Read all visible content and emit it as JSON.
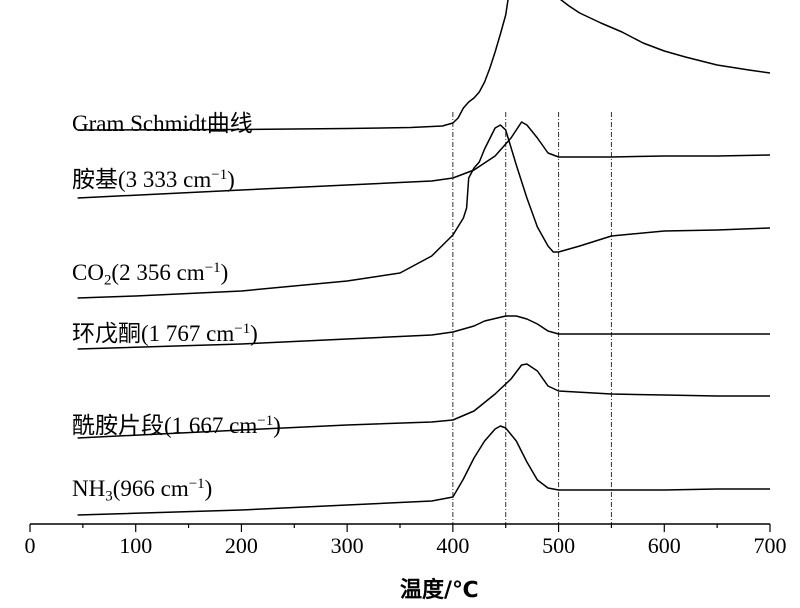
{
  "chart_data": {
    "type": "line",
    "xlabel": "温度/℃",
    "ylabel": "",
    "xlim": [
      0,
      700
    ],
    "x_ticks": [
      0,
      100,
      200,
      300,
      400,
      500,
      600,
      700
    ],
    "x_tick_labels": [
      "0",
      "100",
      "200",
      "300",
      "400",
      "500",
      "600",
      "700"
    ],
    "y_axis": "none; curves are vertically offset relative intensities",
    "reference_lines": [
      400,
      450,
      500,
      550
    ],
    "series": [
      {
        "name": "Gram Schmidt曲线",
        "label_parts": [
          [
            "Gram Schmidt曲线",
            ""
          ]
        ],
        "points": [
          [
            45,
            0.0
          ],
          [
            200,
            0.5
          ],
          [
            300,
            1.5
          ],
          [
            360,
            2.5
          ],
          [
            390,
            4
          ],
          [
            400,
            7
          ],
          [
            405,
            12
          ],
          [
            410,
            22
          ],
          [
            415,
            28
          ],
          [
            420,
            32
          ],
          [
            425,
            38
          ],
          [
            430,
            48
          ],
          [
            435,
            62
          ],
          [
            440,
            78
          ],
          [
            445,
            96
          ],
          [
            450,
            115
          ],
          [
            455,
            150
          ],
          [
            460,
            185
          ],
          [
            465,
            203
          ],
          [
            470,
            200
          ],
          [
            475,
            188
          ],
          [
            480,
            172
          ],
          [
            485,
            157
          ],
          [
            490,
            145
          ],
          [
            495,
            137
          ],
          [
            500,
            132
          ],
          [
            510,
            124
          ],
          [
            520,
            117
          ],
          [
            540,
            107
          ],
          [
            560,
            98
          ],
          [
            580,
            87
          ],
          [
            600,
            79
          ],
          [
            620,
            73
          ],
          [
            650,
            65
          ],
          [
            680,
            60
          ],
          [
            700,
            57
          ]
        ]
      },
      {
        "name": "胺基(3 333 cm⁻¹)",
        "label_parts": [
          [
            "胺基(3 333 cm",
            ""
          ],
          [
            "−1",
            "sup"
          ],
          [
            ")",
            ""
          ]
        ],
        "points": [
          [
            45,
            0
          ],
          [
            200,
            8
          ],
          [
            300,
            13
          ],
          [
            380,
            17
          ],
          [
            400,
            20
          ],
          [
            420,
            28
          ],
          [
            440,
            42
          ],
          [
            455,
            60
          ],
          [
            465,
            76
          ],
          [
            470,
            73
          ],
          [
            480,
            60
          ],
          [
            490,
            45
          ],
          [
            500,
            41
          ],
          [
            550,
            41
          ],
          [
            600,
            42
          ],
          [
            650,
            42
          ],
          [
            700,
            43
          ]
        ]
      },
      {
        "name": "CO₂(2 356 cm⁻¹)",
        "label_parts": [
          [
            "CO",
            ""
          ],
          [
            "2",
            "sub"
          ],
          [
            "(2 356 cm",
            ""
          ],
          [
            "−1",
            "sup"
          ],
          [
            ")",
            ""
          ]
        ],
        "points": [
          [
            45,
            0
          ],
          [
            100,
            2
          ],
          [
            200,
            7
          ],
          [
            300,
            17
          ],
          [
            350,
            25
          ],
          [
            380,
            42
          ],
          [
            400,
            63
          ],
          [
            410,
            80
          ],
          [
            413,
            90
          ],
          [
            415,
            120
          ],
          [
            420,
            130
          ],
          [
            425,
            136
          ],
          [
            430,
            149
          ],
          [
            440,
            170
          ],
          [
            445,
            173
          ],
          [
            450,
            168
          ],
          [
            460,
            133
          ],
          [
            470,
            100
          ],
          [
            480,
            71
          ],
          [
            490,
            52
          ],
          [
            495,
            46
          ],
          [
            500,
            46
          ],
          [
            520,
            52
          ],
          [
            550,
            62
          ],
          [
            600,
            67
          ],
          [
            650,
            68
          ],
          [
            700,
            70
          ]
        ]
      },
      {
        "name": "环戊酮(1 767 cm⁻¹)",
        "label_parts": [
          [
            "环戊酮(1 767 cm",
            ""
          ],
          [
            "−1",
            "sup"
          ],
          [
            ")",
            ""
          ]
        ],
        "points": [
          [
            45,
            0
          ],
          [
            200,
            5
          ],
          [
            300,
            10
          ],
          [
            380,
            14
          ],
          [
            400,
            17
          ],
          [
            420,
            23
          ],
          [
            430,
            28
          ],
          [
            450,
            33
          ],
          [
            460,
            33
          ],
          [
            470,
            30
          ],
          [
            480,
            25
          ],
          [
            490,
            18
          ],
          [
            500,
            15
          ],
          [
            550,
            15
          ],
          [
            600,
            15
          ],
          [
            650,
            15
          ],
          [
            700,
            15
          ]
        ]
      },
      {
        "name": "酰胺片段(1 667 cm⁻¹)",
        "label_parts": [
          [
            "酰胺片段(1 667 cm",
            ""
          ],
          [
            "−1",
            "sup"
          ],
          [
            ")",
            ""
          ]
        ],
        "points": [
          [
            45,
            0
          ],
          [
            200,
            8
          ],
          [
            300,
            13
          ],
          [
            380,
            16
          ],
          [
            400,
            18
          ],
          [
            420,
            27
          ],
          [
            440,
            44
          ],
          [
            455,
            59
          ],
          [
            465,
            73
          ],
          [
            470,
            74
          ],
          [
            480,
            67
          ],
          [
            490,
            52
          ],
          [
            500,
            47
          ],
          [
            550,
            44
          ],
          [
            600,
            43
          ],
          [
            650,
            42
          ],
          [
            700,
            42
          ]
        ]
      },
      {
        "name": "NH₃(966 cm⁻¹)",
        "label_parts": [
          [
            "NH",
            ""
          ],
          [
            "3",
            "sub"
          ],
          [
            "(966 cm",
            ""
          ],
          [
            "−1",
            "sup"
          ],
          [
            ")",
            ""
          ]
        ],
        "points": [
          [
            45,
            0
          ],
          [
            200,
            5
          ],
          [
            300,
            10
          ],
          [
            380,
            14
          ],
          [
            400,
            18
          ],
          [
            410,
            36
          ],
          [
            420,
            57
          ],
          [
            430,
            74
          ],
          [
            440,
            86
          ],
          [
            445,
            89
          ],
          [
            450,
            87
          ],
          [
            460,
            74
          ],
          [
            470,
            53
          ],
          [
            480,
            35
          ],
          [
            490,
            27
          ],
          [
            500,
            25
          ],
          [
            550,
            25
          ],
          [
            600,
            25
          ],
          [
            650,
            26
          ],
          [
            700,
            26
          ]
        ]
      }
    ]
  }
}
